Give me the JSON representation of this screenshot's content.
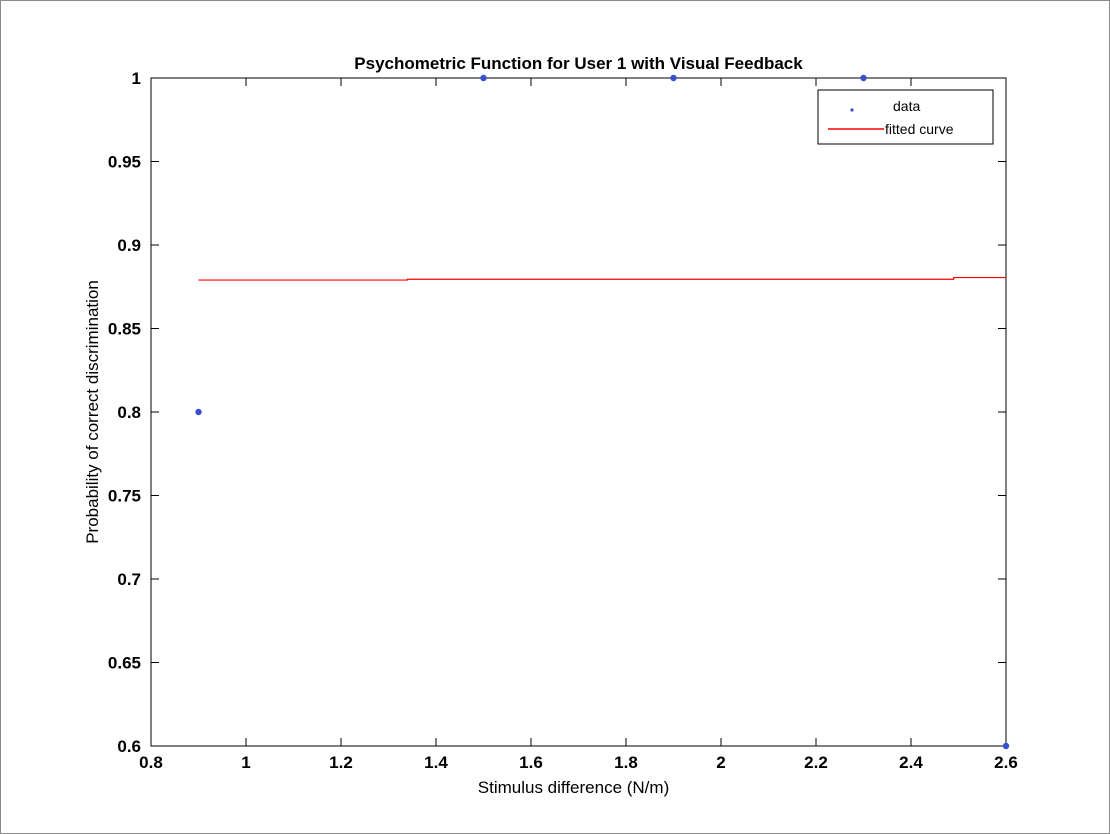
{
  "chart_data": {
    "type": "scatter",
    "title": "Psychometric Function for User 1 with Visual Feedback",
    "xlabel": "Stimulus difference (N/m)",
    "ylabel": "Probability of correct discrimination",
    "xlim": [
      0.8,
      2.6
    ],
    "ylim": [
      0.6,
      1.0
    ],
    "xticks": [
      "0.8",
      "1",
      "1.2",
      "1.4",
      "1.6",
      "1.8",
      "2",
      "2.2",
      "2.4",
      "2.6"
    ],
    "yticks": [
      "0.6",
      "0.65",
      "0.7",
      "0.75",
      "0.8",
      "0.85",
      "0.9",
      "0.95",
      "1"
    ],
    "grid": false,
    "legend_position": "top-right",
    "series": [
      {
        "name": "data",
        "kind": "scatter",
        "color": "#3a4fd0",
        "x": [
          0.9,
          1.5,
          1.9,
          2.3,
          2.6
        ],
        "y": [
          0.8,
          1.0,
          1.0,
          1.0,
          0.6
        ]
      },
      {
        "name": "fitted curve",
        "kind": "line",
        "color": "#ff0000",
        "x": [
          0.9,
          1.34,
          1.34,
          2.49,
          2.49,
          2.6
        ],
        "y": [
          0.879,
          0.879,
          0.8795,
          0.8795,
          0.8805,
          0.8805
        ]
      }
    ]
  }
}
